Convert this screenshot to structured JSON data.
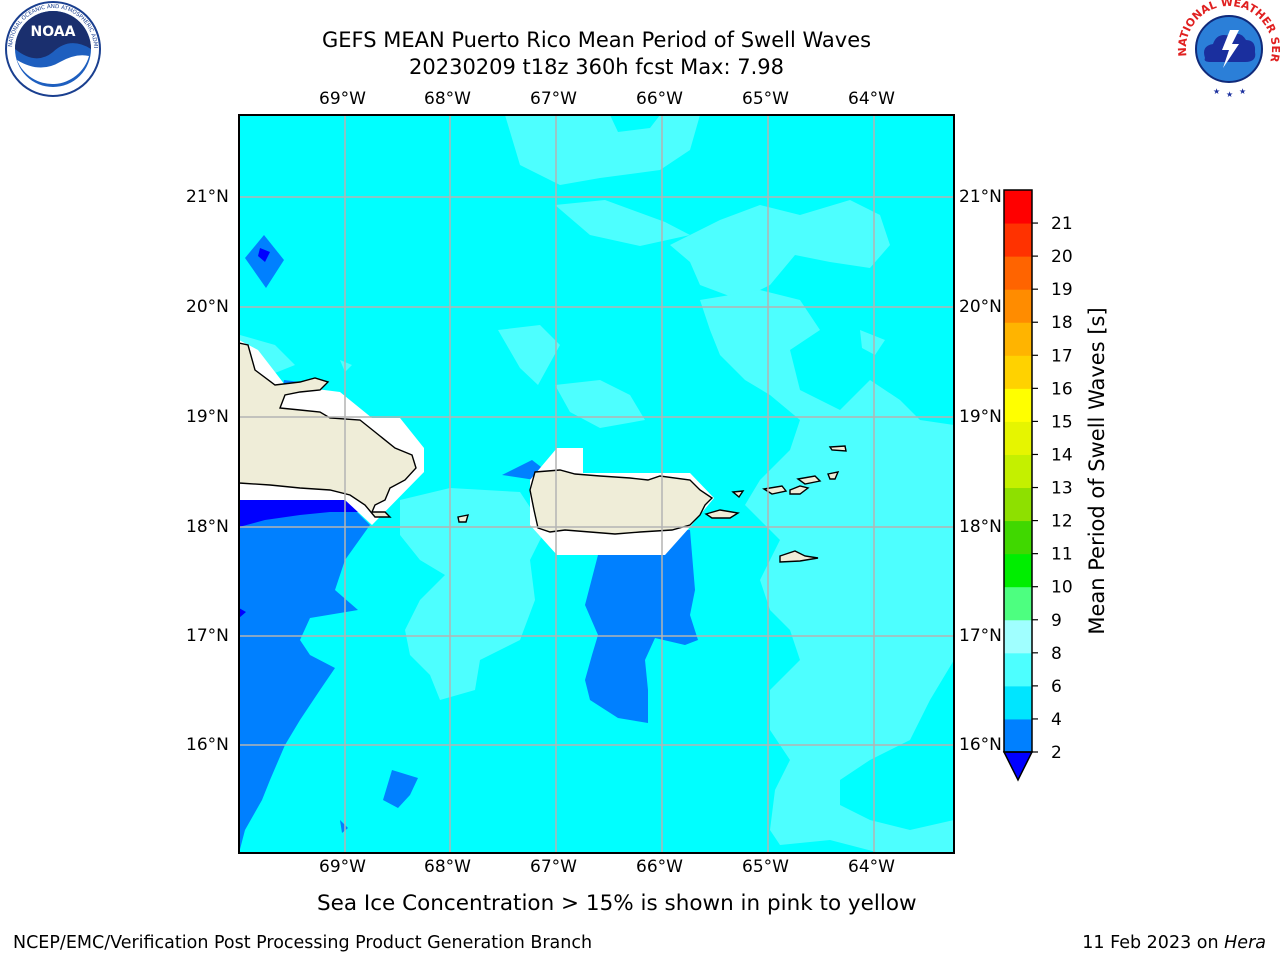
{
  "title_line1": "GEFS MEAN Puerto Rico Mean Period of Swell Waves",
  "title_line2": "20230209 t18z 360h fcst   Max: 7.98",
  "lon_labels": [
    "69°W",
    "68°W",
    "67°W",
    "66°W",
    "65°W",
    "64°W"
  ],
  "lat_labels": [
    "21°N",
    "20°N",
    "19°N",
    "18°N",
    "17°N",
    "16°N"
  ],
  "colorbar": {
    "label": "Mean Period of Swell Waves [s]",
    "ticks": [
      "2",
      "4",
      "6",
      "8",
      "9",
      "10",
      "11",
      "12",
      "13",
      "14",
      "15",
      "16",
      "17",
      "18",
      "19",
      "20",
      "21"
    ],
    "colors": [
      "#0080ff",
      "#00e5ff",
      "#4dffff",
      "#a0ffff",
      "#4dff80",
      "#00ee00",
      "#40d800",
      "#8ee000",
      "#c4f000",
      "#e6f500",
      "#ffff00",
      "#ffd200",
      "#ffb400",
      "#ff8c00",
      "#ff6400",
      "#ff3200",
      "#ff0000"
    ],
    "extend_color": "#0000ff"
  },
  "caption": "Sea Ice Concentration > 15% is shown in pink to yellow",
  "footer_left": "NCEP/EMC/Verification Post Processing Product Generation Branch",
  "footer_right_date": "11 Feb 2023 on ",
  "footer_right_machine": "Hera",
  "logos": {
    "noaa_text": "NOAA",
    "noaa_ring": "NATIONAL OCEANIC AND ATMOSPHERIC ADMINISTRATION · U.S. DEPARTMENT OF COMMERCE",
    "nws_ring": "NATIONAL WEATHER SERVICE"
  },
  "field_colors": {
    "band_4_6": "#00ffff",
    "band_6_8": "#4dffff",
    "band_2_4": "#0080ff",
    "below_2": "#0000ff",
    "land": "#efedd8",
    "mask": "#ffffff",
    "grid": "#b4b4b4"
  }
}
